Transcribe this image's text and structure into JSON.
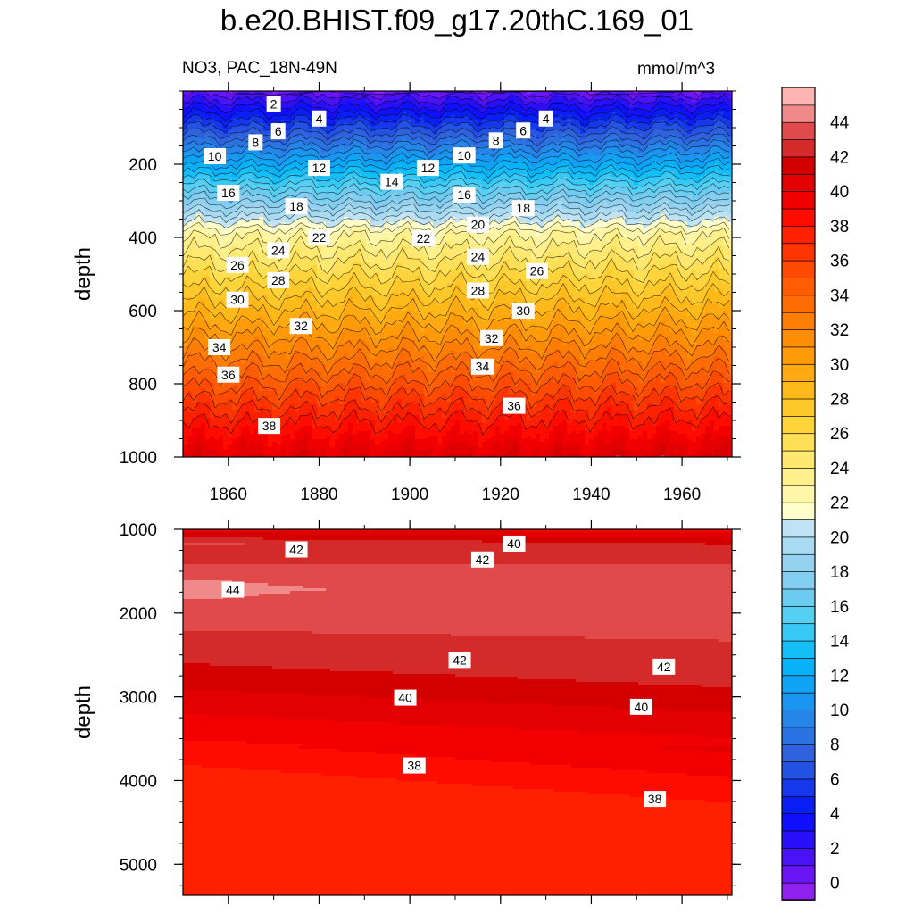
{
  "title": "b.e20.BHIST.f09_g17.20thC.169_01",
  "subtitle_left": "NO3, PAC_18N-49N",
  "subtitle_right": "mmol/m^3",
  "chart_data": [
    {
      "type": "contour",
      "panel": "upper",
      "xlabel": "",
      "ylabel": "depth",
      "xlim": [
        1850,
        1971
      ],
      "ylim": [
        0,
        1000
      ],
      "y_reversed": true,
      "x_ticks": [
        1860,
        1880,
        1900,
        1920,
        1940,
        1960
      ],
      "x_tick_labels": [
        "1860",
        "1880",
        "1900",
        "1920",
        "1940",
        "1960"
      ],
      "y_ticks": [
        200,
        400,
        600,
        800,
        1000
      ],
      "y_tick_labels": [
        "200",
        "400",
        "600",
        "800",
        "1000"
      ],
      "contour_interval": 2,
      "contour_levels": [
        2,
        4,
        6,
        8,
        10,
        12,
        14,
        16,
        18,
        20,
        22,
        24,
        26,
        28,
        30,
        32,
        34,
        36,
        38
      ],
      "contour_line_labels": [
        {
          "text": "2",
          "year": 1870,
          "depth": 35
        },
        {
          "text": "4",
          "year": 1880,
          "depth": 75
        },
        {
          "text": "4",
          "year": 1930,
          "depth": 75
        },
        {
          "text": "6",
          "year": 1871,
          "depth": 110
        },
        {
          "text": "6",
          "year": 1925,
          "depth": 108
        },
        {
          "text": "8",
          "year": 1866,
          "depth": 140
        },
        {
          "text": "8",
          "year": 1919,
          "depth": 135
        },
        {
          "text": "10",
          "year": 1857,
          "depth": 178
        },
        {
          "text": "10",
          "year": 1912,
          "depth": 176
        },
        {
          "text": "12",
          "year": 1880,
          "depth": 210
        },
        {
          "text": "12",
          "year": 1904,
          "depth": 210
        },
        {
          "text": "14",
          "year": 1896,
          "depth": 248
        },
        {
          "text": "16",
          "year": 1860,
          "depth": 278
        },
        {
          "text": "16",
          "year": 1912,
          "depth": 283
        },
        {
          "text": "18",
          "year": 1875,
          "depth": 315
        },
        {
          "text": "18",
          "year": 1925,
          "depth": 320
        },
        {
          "text": "20",
          "year": 1915,
          "depth": 365
        },
        {
          "text": "22",
          "year": 1880,
          "depth": 400
        },
        {
          "text": "22",
          "year": 1903,
          "depth": 403
        },
        {
          "text": "24",
          "year": 1871,
          "depth": 435
        },
        {
          "text": "24",
          "year": 1915,
          "depth": 453
        },
        {
          "text": "26",
          "year": 1862,
          "depth": 475
        },
        {
          "text": "26",
          "year": 1928,
          "depth": 492
        },
        {
          "text": "28",
          "year": 1871,
          "depth": 517
        },
        {
          "text": "28",
          "year": 1915,
          "depth": 545
        },
        {
          "text": "30",
          "year": 1862,
          "depth": 570
        },
        {
          "text": "30",
          "year": 1925,
          "depth": 600
        },
        {
          "text": "32",
          "year": 1876,
          "depth": 642
        },
        {
          "text": "32",
          "year": 1918,
          "depth": 675
        },
        {
          "text": "34",
          "year": 1858,
          "depth": 700
        },
        {
          "text": "34",
          "year": 1916,
          "depth": 753
        },
        {
          "text": "36",
          "year": 1860,
          "depth": 775
        },
        {
          "text": "36",
          "year": 1923,
          "depth": 860
        },
        {
          "text": "38",
          "year": 1869,
          "depth": 915
        }
      ]
    },
    {
      "type": "contour",
      "panel": "lower",
      "xlabel": "",
      "ylabel": "depth",
      "xlim": [
        1850,
        1971
      ],
      "ylim": [
        1000,
        5370
      ],
      "y_reversed": true,
      "x_ticks": [
        1860,
        1880,
        1900,
        1920,
        1940,
        1960
      ],
      "y_ticks": [
        1000,
        2000,
        3000,
        4000,
        5000
      ],
      "y_tick_labels": [
        "1000",
        "2000",
        "3000",
        "4000",
        "5000"
      ],
      "contour_levels": [
        38,
        40,
        41,
        42,
        43,
        44
      ],
      "contour_line_labels": [
        {
          "text": "40",
          "year": 1923,
          "depth": 1170
        },
        {
          "text": "42",
          "year": 1875,
          "depth": 1240
        },
        {
          "text": "42",
          "year": 1916,
          "depth": 1360
        },
        {
          "text": "44",
          "year": 1861,
          "depth": 1720
        },
        {
          "text": "42",
          "year": 1911,
          "depth": 2560
        },
        {
          "text": "42",
          "year": 1956,
          "depth": 2640
        },
        {
          "text": "40",
          "year": 1899,
          "depth": 3010
        },
        {
          "text": "40",
          "year": 1951,
          "depth": 3120
        },
        {
          "text": "38",
          "year": 1901,
          "depth": 3820
        },
        {
          "text": "38",
          "year": 1954,
          "depth": 4220
        }
      ]
    }
  ],
  "colorbar": {
    "orientation": "vertical",
    "min": -1,
    "max": 46,
    "levels": [
      -1,
      0,
      1,
      2,
      3,
      4,
      5,
      6,
      7,
      8,
      9,
      10,
      11,
      12,
      13,
      14,
      15,
      16,
      17,
      18,
      19,
      20,
      21,
      22,
      23,
      24,
      25,
      26,
      27,
      28,
      29,
      30,
      31,
      32,
      33,
      34,
      35,
      36,
      37,
      38,
      39,
      40,
      41,
      42,
      43,
      44,
      45,
      46
    ],
    "colors": [
      "#8f20f0",
      "#6a15f5",
      "#4a12f7",
      "#2810fa",
      "#1010ff",
      "#0a1ef6",
      "#1538ec",
      "#2452e2",
      "#2f62dc",
      "#2b72e2",
      "#2585e8",
      "#1a95f0",
      "#0ea3f5",
      "#08b2f8",
      "#14bff8",
      "#38c8f5",
      "#55d0f3",
      "#6ccbf0",
      "#83cdf0",
      "#95d2f0",
      "#a8daf2",
      "#bfe3f5",
      "#ffffcc",
      "#fff6a8",
      "#fff08c",
      "#ffe870",
      "#ffdf55",
      "#ffd43a",
      "#ffc82a",
      "#ffba1a",
      "#ffaa10",
      "#ff9a08",
      "#ff8c05",
      "#ff7c05",
      "#ff6c04",
      "#ff5c03",
      "#ff4a02",
      "#ff3501",
      "#ff2000",
      "#ff0c00",
      "#f20000",
      "#e30000",
      "#d40000",
      "#d42a2a",
      "#e04a4a",
      "#f08a8a",
      "#ffb4b4"
    ],
    "tick_labels": [
      "0",
      "2",
      "4",
      "6",
      "8",
      "10",
      "12",
      "14",
      "16",
      "18",
      "20",
      "22",
      "24",
      "26",
      "28",
      "30",
      "32",
      "34",
      "36",
      "38",
      "40",
      "42",
      "44"
    ]
  }
}
